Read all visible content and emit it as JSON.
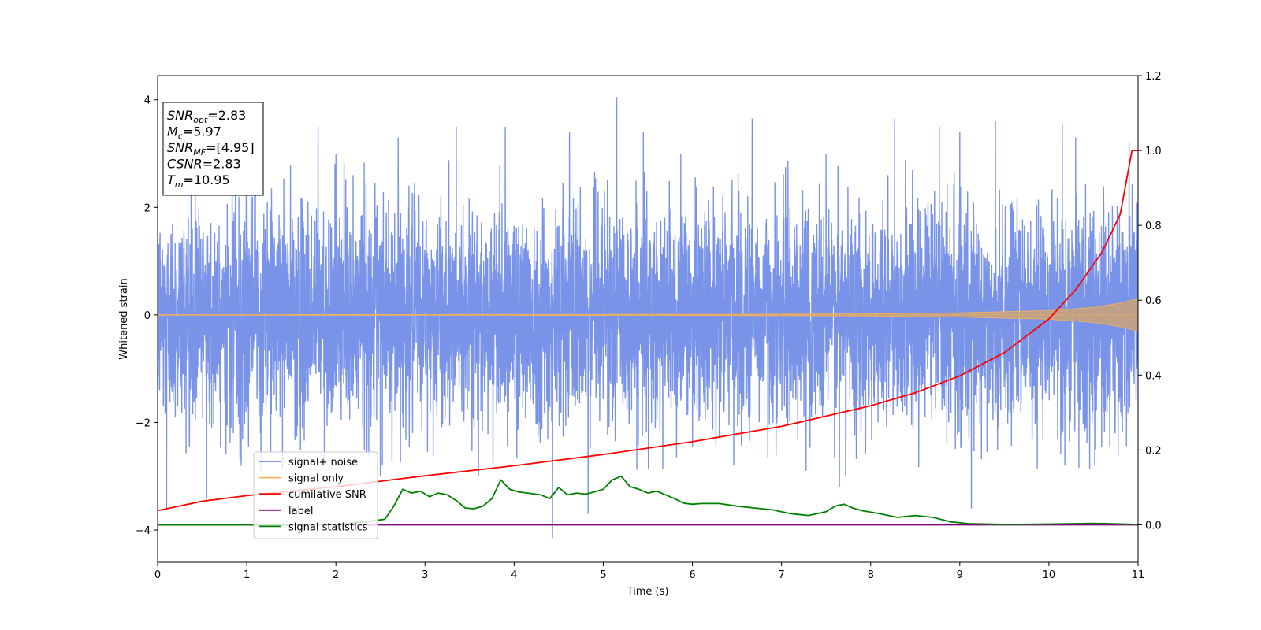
{
  "chart_data": {
    "type": "line",
    "xlabel": "Time (s)",
    "ylabel": "Whitened strain",
    "xlim": [
      0,
      11
    ],
    "ylim_left": [
      -4.6,
      4.45
    ],
    "ylim_right": [
      -0.1,
      1.2
    ],
    "x_ticks": [
      0,
      1,
      2,
      3,
      4,
      5,
      6,
      7,
      8,
      9,
      10,
      11
    ],
    "y_ticks_left": [
      -4,
      -2,
      0,
      2,
      4
    ],
    "y_ticks_right": [
      0.0,
      0.2,
      0.4,
      0.6,
      0.8,
      1.0,
      1.2
    ],
    "y_tick_labels_left": [
      "−4",
      "−2",
      "0",
      "2",
      "4"
    ],
    "y_tick_labels_right": [
      "0.0",
      "0.2",
      "0.4",
      "0.6",
      "0.8",
      "1.0",
      "1.2"
    ],
    "series": [
      {
        "name": "signal+ noise",
        "axis": "left",
        "color": "#6a87e6",
        "note": "whitened noise, roughly +/-2.5 with spikes to about 4.05 (t=5.15) and -4.15 (t=4.43)",
        "envelope_std": 1.0,
        "spikes": [
          [
            0.1,
            3.3
          ],
          [
            0.1,
            -3.6
          ],
          [
            0.55,
            -3.4
          ],
          [
            1.8,
            3.5
          ],
          [
            2.0,
            3.0
          ],
          [
            2.7,
            3.3
          ],
          [
            3.35,
            3.5
          ],
          [
            3.9,
            3.5
          ],
          [
            4.43,
            -4.15
          ],
          [
            4.62,
            3.4
          ],
          [
            4.83,
            -3.7
          ],
          [
            5.15,
            4.05
          ],
          [
            5.45,
            3.4
          ],
          [
            5.87,
            3.0
          ],
          [
            6.67,
            3.65
          ],
          [
            7.5,
            3.0
          ],
          [
            7.72,
            -3.0
          ],
          [
            8.27,
            3.65
          ],
          [
            8.77,
            3.5
          ],
          [
            9.13,
            -3.6
          ],
          [
            9.4,
            3.6
          ],
          [
            10.15,
            3.55
          ],
          [
            9.0,
            3.4
          ],
          [
            10.3,
            3.3
          ],
          [
            10.9,
            3.2
          ],
          [
            3.6,
            -3.0
          ],
          [
            2.5,
            -3.0
          ],
          [
            7.65,
            -3.2
          ]
        ]
      },
      {
        "name": "signal only",
        "axis": "left",
        "color": "#f5b25a",
        "note": "chirp, near zero, amplitude growing to about 0.3 at t=11",
        "amplitude": [
          [
            0,
            0.005
          ],
          [
            6,
            0.01
          ],
          [
            8,
            0.02
          ],
          [
            9,
            0.04
          ],
          [
            10,
            0.08
          ],
          [
            10.5,
            0.14
          ],
          [
            10.8,
            0.22
          ],
          [
            11,
            0.3
          ]
        ]
      },
      {
        "name": "cumilative SNR",
        "axis": "right",
        "color": "#ff0000",
        "x": [
          0,
          0.5,
          1,
          2,
          3,
          4,
          5,
          6,
          7,
          8,
          8.5,
          9,
          9.5,
          10,
          10.3,
          10.6,
          10.8,
          10.95,
          11
        ],
        "values": [
          0.038,
          0.063,
          0.078,
          0.102,
          0.131,
          0.158,
          0.188,
          0.222,
          0.263,
          0.318,
          0.353,
          0.398,
          0.46,
          0.55,
          0.628,
          0.73,
          0.83,
          1.0,
          1.0
        ]
      },
      {
        "name": "label",
        "axis": "right",
        "color": "#800080",
        "x": [
          0,
          11
        ],
        "values": [
          0.0,
          0.0
        ]
      },
      {
        "name": "signal statistics",
        "axis": "right",
        "color": "#008000",
        "x": [
          0,
          1,
          2,
          2.4,
          2.55,
          2.65,
          2.75,
          2.85,
          2.95,
          3.05,
          3.15,
          3.25,
          3.35,
          3.45,
          3.55,
          3.65,
          3.75,
          3.85,
          3.95,
          4.05,
          4.15,
          4.3,
          4.4,
          4.5,
          4.6,
          4.7,
          4.8,
          4.9,
          5.0,
          5.1,
          5.2,
          5.3,
          5.4,
          5.5,
          5.6,
          5.7,
          5.8,
          5.9,
          6.0,
          6.1,
          6.3,
          6.5,
          6.7,
          6.9,
          7.1,
          7.3,
          7.5,
          7.6,
          7.7,
          7.8,
          7.9,
          8.1,
          8.3,
          8.5,
          8.7,
          8.9,
          9.1,
          9.5,
          10.0,
          10.5,
          11
        ],
        "values": [
          0.0,
          0.0,
          0.0,
          0.01,
          0.015,
          0.05,
          0.095,
          0.085,
          0.09,
          0.075,
          0.085,
          0.08,
          0.065,
          0.045,
          0.043,
          0.05,
          0.07,
          0.12,
          0.095,
          0.088,
          0.085,
          0.08,
          0.07,
          0.1,
          0.08,
          0.085,
          0.082,
          0.088,
          0.095,
          0.12,
          0.13,
          0.102,
          0.095,
          0.085,
          0.09,
          0.08,
          0.07,
          0.058,
          0.055,
          0.057,
          0.057,
          0.05,
          0.045,
          0.04,
          0.03,
          0.025,
          0.035,
          0.05,
          0.055,
          0.045,
          0.038,
          0.03,
          0.02,
          0.025,
          0.02,
          0.008,
          0.003,
          0.001,
          0.002,
          0.004,
          0.001
        ]
      }
    ],
    "legend": {
      "placement": "lower-left",
      "entries": [
        {
          "label": "signal+ noise",
          "color": "#6a87e6"
        },
        {
          "label": "signal only",
          "color": "#f5b25a"
        },
        {
          "label": "cumilative SNR",
          "color": "#ff0000"
        },
        {
          "label": "label",
          "color": "#800080"
        },
        {
          "label": "signal statistics",
          "color": "#008000"
        }
      ]
    },
    "info_box": {
      "placement": "top-left",
      "lines": [
        {
          "italic": "SNR",
          "sub": "opt",
          "rest": "=2.83"
        },
        {
          "italic": "M",
          "sub": "c",
          "rest": "=5.97"
        },
        {
          "italic": "SNR",
          "sub": "MF",
          "rest": "=[4.95]"
        },
        {
          "italic": "CSNR",
          "sub": "",
          "rest": "=2.83"
        },
        {
          "italic": "T",
          "sub": "m",
          "rest": "=10.95"
        }
      ]
    }
  }
}
